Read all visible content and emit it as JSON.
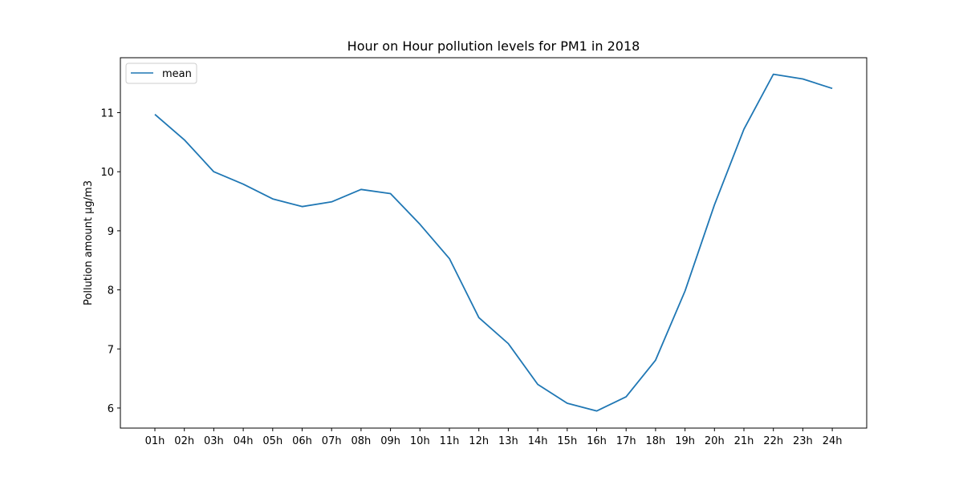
{
  "chart_data": {
    "type": "line",
    "title": "Hour on Hour pollution levels for PM1 in 2018",
    "xlabel": "",
    "ylabel": "Pollution amount µg/m3",
    "categories": [
      "01h",
      "02h",
      "03h",
      "04h",
      "05h",
      "06h",
      "07h",
      "08h",
      "09h",
      "10h",
      "11h",
      "12h",
      "13h",
      "14h",
      "15h",
      "16h",
      "17h",
      "18h",
      "19h",
      "20h",
      "21h",
      "22h",
      "23h",
      "24h"
    ],
    "y_ticks": [
      6,
      7,
      8,
      9,
      10,
      11
    ],
    "ylim": [
      5.66,
      11.93
    ],
    "grid": false,
    "legend_position": "upper-left",
    "series": [
      {
        "name": "mean",
        "color": "#1f77b4",
        "values": [
          10.97,
          10.54,
          10.0,
          9.79,
          9.54,
          9.41,
          9.49,
          9.7,
          9.63,
          9.11,
          8.53,
          7.53,
          7.09,
          6.4,
          6.08,
          5.95,
          6.19,
          6.81,
          7.98,
          9.44,
          10.72,
          11.65,
          11.57,
          11.41
        ]
      }
    ]
  }
}
